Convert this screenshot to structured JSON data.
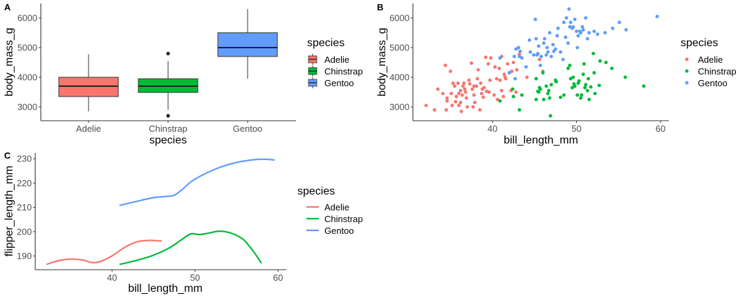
{
  "colors": {
    "Adelie": "#F8766D",
    "Chinstrap": "#00BA38",
    "Gentoo": "#619CFF"
  },
  "chart_data": [
    {
      "tag": "A",
      "type": "box",
      "xlabel": "species",
      "ylabel": "body_mass_g",
      "ylim": [
        2550,
        6450
      ],
      "yticks": [
        3000,
        4000,
        5000,
        6000
      ],
      "ytick_labels": [
        "3000",
        "4000",
        "5000",
        "6000"
      ],
      "categories": [
        "Adelie",
        "Chinstrap",
        "Gentoo"
      ],
      "boxes": [
        {
          "name": "Adelie",
          "min": 2850,
          "q1": 3350,
          "median": 3700,
          "q3": 4000,
          "max": 4775,
          "outliers": []
        },
        {
          "name": "Chinstrap",
          "min": 2900,
          "q1": 3488,
          "median": 3700,
          "q3": 3950,
          "max": 4550,
          "outliers": [
            4800,
            2700
          ]
        },
        {
          "name": "Gentoo",
          "min": 3950,
          "q1": 4700,
          "median": 5000,
          "q3": 5500,
          "max": 6300,
          "outliers": []
        }
      ],
      "legend": {
        "title": "species",
        "entries": [
          "Adelie",
          "Chinstrap",
          "Gentoo"
        ],
        "position": "right"
      }
    },
    {
      "tag": "B",
      "type": "scatter",
      "xlabel": "bill_length_mm",
      "ylabel": "body_mass_g",
      "xlim": [
        31,
        61
      ],
      "ylim": [
        2550,
        6450
      ],
      "xticks": [
        40,
        50,
        60
      ],
      "xtick_labels": [
        "40",
        "50",
        "60"
      ],
      "yticks": [
        3000,
        4000,
        5000,
        6000
      ],
      "ytick_labels": [
        "3000",
        "4000",
        "5000",
        "6000"
      ],
      "series": [
        {
          "name": "Adelie",
          "points": [
            [
              32.1,
              3050
            ],
            [
              33.1,
              2900
            ],
            [
              33.5,
              3600
            ],
            [
              34.1,
              3450
            ],
            [
              34.4,
              4400
            ],
            [
              34.5,
              2900
            ],
            [
              34.6,
              3300
            ],
            [
              34.6,
              3200
            ],
            [
              35.0,
              4200
            ],
            [
              35.1,
              3450
            ],
            [
              35.2,
              3050
            ],
            [
              35.3,
              3800
            ],
            [
              35.5,
              3700
            ],
            [
              35.6,
              3175
            ],
            [
              35.7,
              3350
            ],
            [
              35.9,
              3800
            ],
            [
              36.0,
              3450
            ],
            [
              36.0,
              3050
            ],
            [
              36.2,
              3550
            ],
            [
              36.2,
              3150
            ],
            [
              36.3,
              2850
            ],
            [
              36.4,
              3400
            ],
            [
              36.5,
              3700
            ],
            [
              36.6,
              3800
            ],
            [
              36.7,
              3600
            ],
            [
              36.8,
              3500
            ],
            [
              36.9,
              3300
            ],
            [
              37.0,
              3000
            ],
            [
              37.2,
              3900
            ],
            [
              37.3,
              3775
            ],
            [
              37.5,
              4475
            ],
            [
              37.6,
              3600
            ],
            [
              37.7,
              3000
            ],
            [
              37.8,
              3700
            ],
            [
              37.8,
              3400
            ],
            [
              37.9,
              3150
            ],
            [
              38.1,
              3700
            ],
            [
              38.2,
              3950
            ],
            [
              38.3,
              4250
            ],
            [
              38.5,
              2900
            ],
            [
              38.6,
              3800
            ],
            [
              38.7,
              3450
            ],
            [
              38.8,
              3600
            ],
            [
              38.9,
              3325
            ],
            [
              39.0,
              3650
            ],
            [
              39.2,
              4675
            ],
            [
              39.3,
              3525
            ],
            [
              39.5,
              4450
            ],
            [
              39.6,
              3500
            ],
            [
              39.7,
              3900
            ],
            [
              39.8,
              4650
            ],
            [
              40.2,
              3400
            ],
            [
              40.3,
              4350
            ],
            [
              40.5,
              3950
            ],
            [
              40.6,
              3250
            ],
            [
              40.8,
              4300
            ],
            [
              40.9,
              3900
            ],
            [
              41.1,
              3550
            ],
            [
              41.1,
              4700
            ],
            [
              41.3,
              3350
            ],
            [
              41.4,
              4100
            ],
            [
              41.5,
              4000
            ],
            [
              41.6,
              3950
            ],
            [
              41.8,
              4450
            ],
            [
              42.0,
              4150
            ],
            [
              42.2,
              3550
            ],
            [
              42.3,
              4200
            ],
            [
              42.5,
              4500
            ],
            [
              42.8,
              3500
            ],
            [
              42.9,
              4250
            ],
            [
              43.2,
              4775
            ],
            [
              44.1,
              4000
            ],
            [
              45.6,
              4600
            ],
            [
              46.0,
              4200
            ]
          ]
        },
        {
          "name": "Chinstrap",
          "points": [
            [
              40.9,
              3200
            ],
            [
              42.4,
              3600
            ],
            [
              42.5,
              3350
            ],
            [
              43.2,
              2900
            ],
            [
              43.5,
              3400
            ],
            [
              45.2,
              3950
            ],
            [
              45.2,
              3250
            ],
            [
              45.4,
              3525
            ],
            [
              45.5,
              3500
            ],
            [
              45.6,
              3650
            ],
            [
              45.7,
              3600
            ],
            [
              46.0,
              4150
            ],
            [
              46.1,
              3250
            ],
            [
              46.4,
              3700
            ],
            [
              46.6,
              3450
            ],
            [
              46.7,
              3550
            ],
            [
              46.8,
              3300
            ],
            [
              46.9,
              2700
            ],
            [
              47.0,
              3750
            ],
            [
              47.5,
              3900
            ],
            [
              47.6,
              3850
            ],
            [
              48.1,
              3325
            ],
            [
              48.5,
              3400
            ],
            [
              49.0,
              4300
            ],
            [
              49.2,
              4400
            ],
            [
              49.3,
              3950
            ],
            [
              49.5,
              3650
            ],
            [
              49.7,
              3775
            ],
            [
              49.8,
              3700
            ],
            [
              50.1,
              3400
            ],
            [
              50.2,
              3800
            ],
            [
              50.3,
              3875
            ],
            [
              50.5,
              3300
            ],
            [
              50.6,
              3400
            ],
            [
              50.8,
              4100
            ],
            [
              51.0,
              3650
            ],
            [
              51.1,
              3750
            ],
            [
              51.3,
              3550
            ],
            [
              51.4,
              3950
            ],
            [
              51.5,
              3250
            ],
            [
              51.7,
              3675
            ],
            [
              52.0,
              4800
            ],
            [
              52.1,
              4150
            ],
            [
              52.2,
              3450
            ],
            [
              52.7,
              3725
            ],
            [
              52.8,
              4550
            ],
            [
              53.5,
              4500
            ],
            [
              54.2,
              4300
            ],
            [
              55.8,
              4000
            ],
            [
              58.0,
              3700
            ],
            [
              50.9,
              4450
            ],
            [
              49.6,
              4000
            ]
          ]
        },
        {
          "name": "Gentoo",
          "points": [
            [
              40.9,
              4650
            ],
            [
              42.0,
              4150
            ],
            [
              42.6,
              4700
            ],
            [
              42.7,
              3950
            ],
            [
              42.8,
              4950
            ],
            [
              43.1,
              5000
            ],
            [
              43.2,
              4700
            ],
            [
              43.3,
              4875
            ],
            [
              43.5,
              4650
            ],
            [
              44.0,
              4350
            ],
            [
              44.4,
              5250
            ],
            [
              44.5,
              4850
            ],
            [
              44.9,
              4750
            ],
            [
              45.1,
              5950
            ],
            [
              45.2,
              5300
            ],
            [
              45.3,
              4750
            ],
            [
              45.4,
              4800
            ],
            [
              45.5,
              5050
            ],
            [
              45.7,
              4400
            ],
            [
              45.8,
              4700
            ],
            [
              46.1,
              5150
            ],
            [
              46.2,
              5300
            ],
            [
              46.4,
              4750
            ],
            [
              46.5,
              5000
            ],
            [
              46.6,
              4850
            ],
            [
              46.8,
              5500
            ],
            [
              47.0,
              4700
            ],
            [
              47.2,
              5100
            ],
            [
              47.3,
              4875
            ],
            [
              47.5,
              4950
            ],
            [
              47.7,
              5400
            ],
            [
              47.8,
              5650
            ],
            [
              48.1,
              4850
            ],
            [
              48.4,
              4600
            ],
            [
              48.5,
              5850
            ],
            [
              48.7,
              5350
            ],
            [
              48.8,
              6000
            ],
            [
              49.0,
              5150
            ],
            [
              49.1,
              6300
            ],
            [
              49.2,
              5700
            ],
            [
              49.3,
              5850
            ],
            [
              49.5,
              5650
            ],
            [
              49.6,
              5700
            ],
            [
              49.8,
              5950
            ],
            [
              50.0,
              5550
            ],
            [
              50.1,
              5000
            ],
            [
              50.2,
              5400
            ],
            [
              50.4,
              5550
            ],
            [
              50.5,
              5500
            ],
            [
              50.7,
              5700
            ],
            [
              50.8,
              5600
            ],
            [
              51.1,
              6000
            ],
            [
              51.3,
              5300
            ],
            [
              51.5,
              5500
            ],
            [
              52.1,
              5550
            ],
            [
              52.5,
              5450
            ],
            [
              53.4,
              5500
            ],
            [
              54.3,
              5650
            ],
            [
              55.1,
              5850
            ],
            [
              55.9,
              5600
            ],
            [
              59.6,
              6050
            ]
          ]
        }
      ],
      "legend": {
        "title": "species",
        "entries": [
          "Adelie",
          "Chinstrap",
          "Gentoo"
        ],
        "position": "right"
      }
    },
    {
      "tag": "C",
      "type": "line",
      "xlabel": "bill_length_mm",
      "ylabel": "flipper_length_mm",
      "xlim": [
        31,
        61
      ],
      "ylim": [
        184.5,
        231
      ],
      "xticks": [
        40,
        50,
        60
      ],
      "xtick_labels": [
        "40",
        "50",
        "60"
      ],
      "yticks": [
        190,
        200,
        210,
        220,
        230
      ],
      "ytick_labels": [
        "190",
        "200",
        "210",
        "220",
        "230"
      ],
      "series": [
        {
          "name": "Adelie",
          "points": [
            [
              32.1,
              186.5
            ],
            [
              33.5,
              188.0
            ],
            [
              35.0,
              188.7
            ],
            [
              36.5,
              188.3
            ],
            [
              37.5,
              187.3
            ],
            [
              38.5,
              187.6
            ],
            [
              40.0,
              190.0
            ],
            [
              41.5,
              193.5
            ],
            [
              43.0,
              195.8
            ],
            [
              44.5,
              196.4
            ],
            [
              46.0,
              196.1
            ]
          ]
        },
        {
          "name": "Chinstrap",
          "points": [
            [
              40.9,
              186.5
            ],
            [
              43.0,
              188.2
            ],
            [
              45.0,
              190.3
            ],
            [
              47.0,
              193.5
            ],
            [
              48.5,
              197.0
            ],
            [
              49.5,
              199.1
            ],
            [
              50.5,
              198.8
            ],
            [
              51.5,
              199.3
            ],
            [
              53.0,
              200.2
            ],
            [
              54.5,
              199.2
            ],
            [
              55.8,
              196.8
            ],
            [
              57.0,
              192.0
            ],
            [
              58.0,
              187.0
            ]
          ]
        },
        {
          "name": "Gentoo",
          "points": [
            [
              40.9,
              210.8
            ],
            [
              43.0,
              212.5
            ],
            [
              45.0,
              214.0
            ],
            [
              46.5,
              214.5
            ],
            [
              47.5,
              215.0
            ],
            [
              48.5,
              217.5
            ],
            [
              49.5,
              220.5
            ],
            [
              51.0,
              223.5
            ],
            [
              53.0,
              226.5
            ],
            [
              55.0,
              228.5
            ],
            [
              57.0,
              229.6
            ],
            [
              58.5,
              229.8
            ],
            [
              59.6,
              229.5
            ]
          ]
        }
      ],
      "legend": {
        "title": "species",
        "entries": [
          "Adelie",
          "Chinstrap",
          "Gentoo"
        ],
        "position": "right"
      }
    }
  ]
}
